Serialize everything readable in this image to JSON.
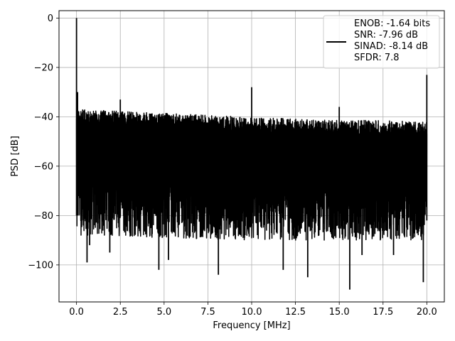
{
  "chart_data": {
    "type": "line",
    "xlabel": "Frequency [MHz]",
    "ylabel": "PSD [dB]",
    "xlim": [
      -1.0,
      21.0
    ],
    "ylim": [
      -115,
      3
    ],
    "xticks": [
      0.0,
      2.5,
      5.0,
      7.5,
      10.0,
      12.5,
      15.0,
      17.5,
      20.0
    ],
    "xtick_labels": [
      "0.0",
      "2.5",
      "5.0",
      "7.5",
      "10.0",
      "12.5",
      "15.0",
      "17.5",
      "20.0"
    ],
    "yticks": [
      0,
      -20,
      -40,
      -60,
      -80,
      -100
    ],
    "ytick_labels": [
      "0",
      "−20",
      "−40",
      "−60",
      "−80",
      "−100"
    ],
    "grid": true,
    "legend_position": "top-right",
    "series": [
      {
        "name": "ENOB: -1.64 bits\nSNR: -7.96 dB\nSINAD: -8.14 dB\nSFDR: 7.8",
        "color": "#000000",
        "noise_floor_upper": [
          [
            0.0,
            -37
          ],
          [
            2.0,
            -37.5
          ],
          [
            5.0,
            -38.5
          ],
          [
            8.0,
            -39.5
          ],
          [
            11.0,
            -40.5
          ],
          [
            14.0,
            -41.2
          ],
          [
            17.0,
            -41.5
          ],
          [
            20.0,
            -42
          ]
        ],
        "noise_floor_lower": [
          [
            0.0,
            -80
          ],
          [
            10.0,
            -82
          ],
          [
            20.0,
            -82
          ]
        ],
        "spikes": [
          {
            "x": 0.0,
            "y": 0
          },
          {
            "x": 0.06,
            "y": -30
          },
          {
            "x": 2.5,
            "y": -33
          },
          {
            "x": 10.0,
            "y": -28
          },
          {
            "x": 15.0,
            "y": -36
          },
          {
            "x": 20.0,
            "y": -23
          }
        ],
        "dips": [
          {
            "x": 0.6,
            "y": -99
          },
          {
            "x": 0.75,
            "y": -92
          },
          {
            "x": 1.9,
            "y": -95
          },
          {
            "x": 4.7,
            "y": -102
          },
          {
            "x": 5.25,
            "y": -98
          },
          {
            "x": 8.1,
            "y": -104
          },
          {
            "x": 11.8,
            "y": -102
          },
          {
            "x": 13.2,
            "y": -105
          },
          {
            "x": 15.6,
            "y": -110
          },
          {
            "x": 19.8,
            "y": -107
          },
          {
            "x": 16.3,
            "y": -96
          },
          {
            "x": 18.1,
            "y": -96
          }
        ]
      }
    ]
  }
}
